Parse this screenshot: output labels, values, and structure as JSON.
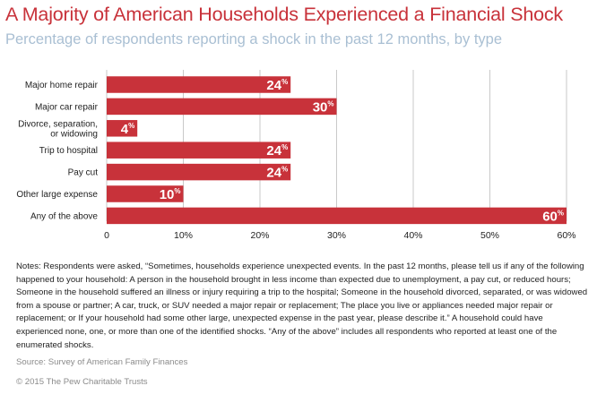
{
  "title": "A Majority of American Households Experienced a Financial Shock",
  "subtitle": "Percentage of respondents reporting a shock in the past 12 months, by type",
  "chart_data": {
    "type": "bar",
    "orientation": "horizontal",
    "categories": [
      [
        "Major home repair"
      ],
      [
        "Major car repair"
      ],
      [
        "Divorce, separation,",
        "or widowing"
      ],
      [
        "Trip to hospital"
      ],
      [
        "Pay cut"
      ],
      [
        "Other large expense"
      ],
      [
        "Any of the above"
      ]
    ],
    "values": [
      24,
      30,
      4,
      24,
      24,
      10,
      60
    ],
    "value_suffix": "%",
    "xlim": [
      0,
      60
    ],
    "x_ticks": [
      0,
      10,
      20,
      30,
      40,
      50,
      60
    ],
    "x_tick_labels": [
      "0",
      "10%",
      "20%",
      "30%",
      "40%",
      "50%",
      "60%"
    ],
    "grid": true,
    "colors": {
      "bar": "#c8323a",
      "grid": "#c9c9c9",
      "label_text": "#ffffff"
    }
  },
  "notes": "Notes: Respondents were asked, “Sometimes, households experience unexpected events. In the past 12 months, please tell us if any of the following happened to your household: A person in the household brought in less income than expected due to unemployment, a pay cut, or reduced hours; Someone in the household suffered an illness or injury requiring a trip to the hospital; Someone in the household divorced, separated, or was widowed from a spouse or partner; A car, truck, or SUV needed a major repair or replacement; The place you live or appliances needed major repair or replacement; or If your household had some other large, unexpected expense in the past year, please describe it.” A household could have experienced none, one, or more than one of the identified shocks. “Any of the above” includes all respondents who reported at least one of the enumerated shocks.",
  "source": "Source: Survey of American Family Finances",
  "copyright": "© 2015 The Pew Charitable Trusts"
}
